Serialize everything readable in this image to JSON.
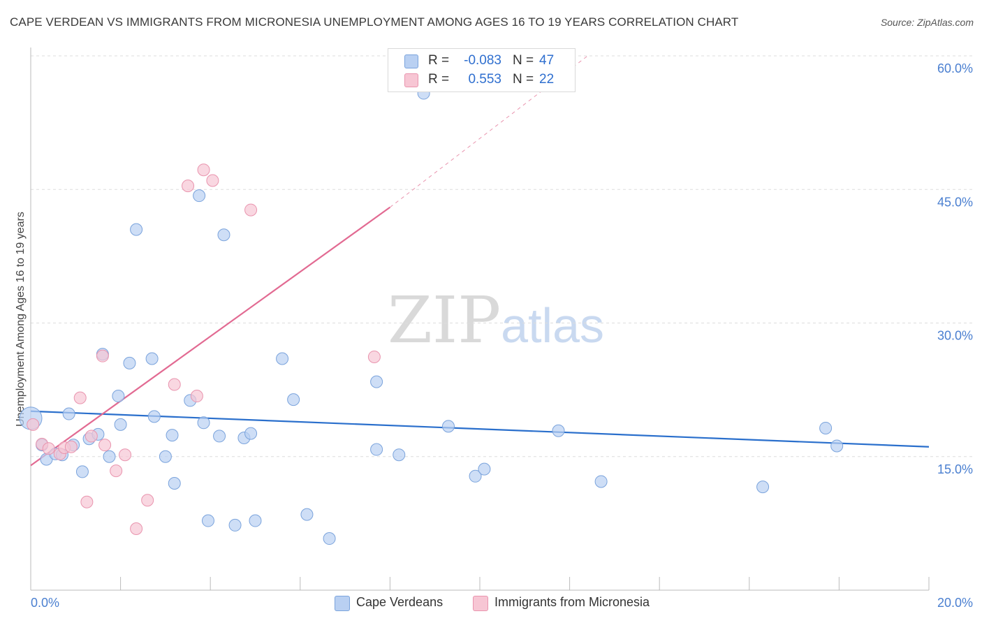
{
  "title": "CAPE VERDEAN VS IMMIGRANTS FROM MICRONESIA UNEMPLOYMENT AMONG AGES 16 TO 19 YEARS CORRELATION CHART",
  "source": "Source: ZipAtlas.com",
  "watermark": {
    "zip": "ZIP",
    "atlas": "atlas"
  },
  "legend": {
    "rows": [
      {
        "r_label": "R =",
        "r_value": "-0.083",
        "n_label": "N =",
        "n_value": "47"
      },
      {
        "r_label": "R =",
        "r_value": "0.553",
        "n_label": "N =",
        "n_value": "22"
      }
    ]
  },
  "bottom_legend": {
    "series1": "Cape Verdeans",
    "series2": "Immigrants from Micronesia"
  },
  "colors": {
    "blue_fill": "#b9d0f2",
    "blue_stroke": "#7aa3dc",
    "blue_line": "#2a6fcc",
    "pink_fill": "#f7c6d4",
    "pink_stroke": "#e994ae",
    "pink_line": "#e26a92",
    "grid": "#dddddd",
    "axis_text": "#4a7fd0"
  },
  "chart_data": {
    "type": "scatter",
    "title": "CAPE VERDEAN VS IMMIGRANTS FROM MICRONESIA UNEMPLOYMENT AMONG AGES 16 TO 19 YEARS CORRELATION CHART",
    "xlabel": "",
    "ylabel": "Unemployment Among Ages 16 to 19 years",
    "xlim": [
      0,
      20
    ],
    "ylim": [
      0,
      60
    ],
    "x_tick_labels": [
      "0.0%",
      "20.0%"
    ],
    "y_ticks": [
      15,
      30,
      45,
      60
    ],
    "y_tick_labels": [
      "15.0%",
      "30.0%",
      "45.0%",
      "60.0%"
    ],
    "series": [
      {
        "name": "Cape Verdeans",
        "color": "blue",
        "R": -0.083,
        "N": 47,
        "trend": {
          "x0": 0,
          "y0": 20.1,
          "x1": 20,
          "y1": 16.1
        },
        "points": [
          [
            0.0,
            19.3
          ],
          [
            0.25,
            16.3
          ],
          [
            0.35,
            14.7
          ],
          [
            0.55,
            15.3
          ],
          [
            0.7,
            15.2
          ],
          [
            0.85,
            19.8
          ],
          [
            0.95,
            16.3
          ],
          [
            1.15,
            13.3
          ],
          [
            1.3,
            17.0
          ],
          [
            1.5,
            17.5
          ],
          [
            1.6,
            26.5
          ],
          [
            1.75,
            15.0
          ],
          [
            1.95,
            21.8
          ],
          [
            2.0,
            18.6
          ],
          [
            2.2,
            25.5
          ],
          [
            2.35,
            40.5
          ],
          [
            2.7,
            26.0
          ],
          [
            2.75,
            19.5
          ],
          [
            3.0,
            15.0
          ],
          [
            3.15,
            17.4
          ],
          [
            3.2,
            12.0
          ],
          [
            3.55,
            21.3
          ],
          [
            3.75,
            44.3
          ],
          [
            3.85,
            18.8
          ],
          [
            3.95,
            7.8
          ],
          [
            4.2,
            17.3
          ],
          [
            4.3,
            39.9
          ],
          [
            4.55,
            7.3
          ],
          [
            4.75,
            17.1
          ],
          [
            4.9,
            17.6
          ],
          [
            5.0,
            7.8
          ],
          [
            5.6,
            26.0
          ],
          [
            5.85,
            21.4
          ],
          [
            6.15,
            8.5
          ],
          [
            6.65,
            5.8
          ],
          [
            7.7,
            15.8
          ],
          [
            7.7,
            23.4
          ],
          [
            8.2,
            15.2
          ],
          [
            8.75,
            55.8
          ],
          [
            9.3,
            18.4
          ],
          [
            9.9,
            12.8
          ],
          [
            10.1,
            13.6
          ],
          [
            11.75,
            17.9
          ],
          [
            12.7,
            12.2
          ],
          [
            16.3,
            11.6
          ],
          [
            17.95,
            16.2
          ],
          [
            17.7,
            18.2
          ]
        ]
      },
      {
        "name": "Immigrants from Micronesia",
        "color": "pink",
        "R": 0.553,
        "N": 22,
        "trend": {
          "x0": 0,
          "y0": 14.0,
          "x1": 8.0,
          "y1": 43.0
        },
        "trend_dashed_to": {
          "x": 12.4,
          "y": 60.0
        },
        "points": [
          [
            0.05,
            18.6
          ],
          [
            0.25,
            16.4
          ],
          [
            0.4,
            15.9
          ],
          [
            0.65,
            15.3
          ],
          [
            0.75,
            16.0
          ],
          [
            0.9,
            16.1
          ],
          [
            1.1,
            21.6
          ],
          [
            1.25,
            9.9
          ],
          [
            1.35,
            17.3
          ],
          [
            1.6,
            26.3
          ],
          [
            1.65,
            16.3
          ],
          [
            1.9,
            13.4
          ],
          [
            2.1,
            15.2
          ],
          [
            2.35,
            6.9
          ],
          [
            2.6,
            10.1
          ],
          [
            3.2,
            23.1
          ],
          [
            3.5,
            45.4
          ],
          [
            3.7,
            21.8
          ],
          [
            3.85,
            47.2
          ],
          [
            4.05,
            46.0
          ],
          [
            4.9,
            42.7
          ],
          [
            7.65,
            26.2
          ]
        ]
      }
    ]
  }
}
